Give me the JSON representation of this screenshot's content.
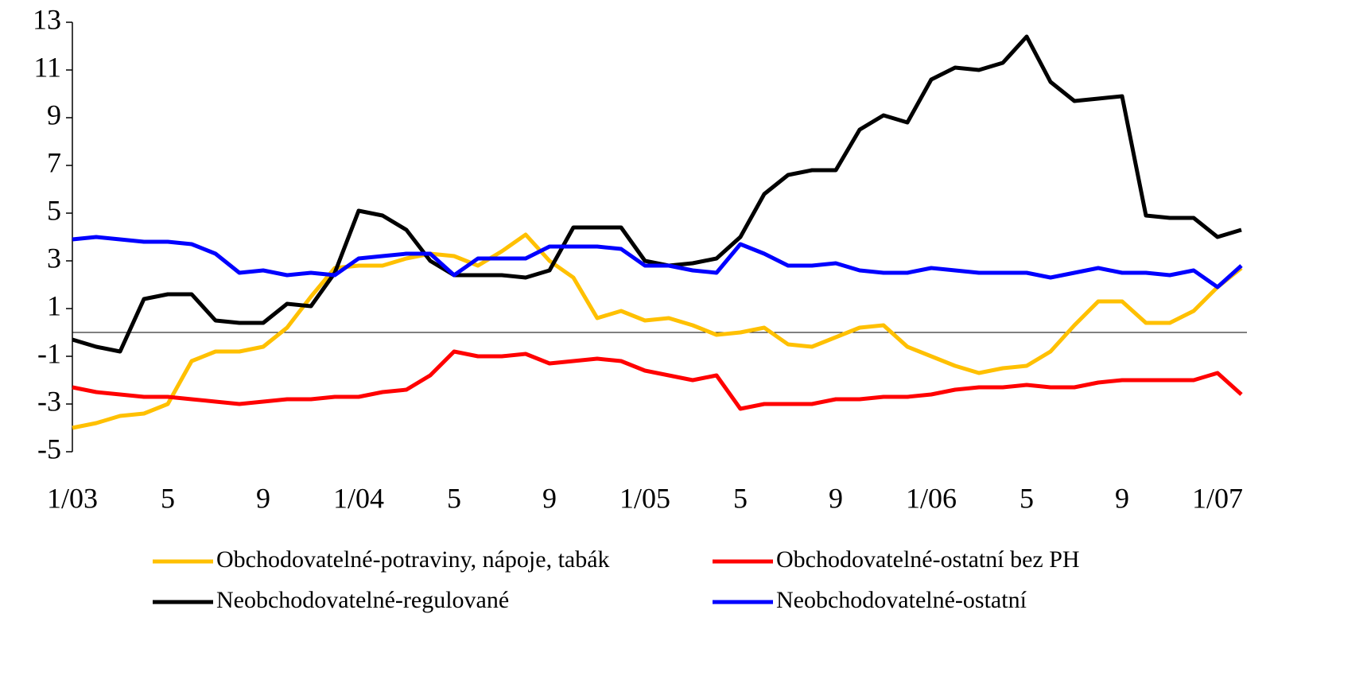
{
  "chart_data": {
    "type": "line",
    "categories": [
      "1/03",
      null,
      null,
      null,
      "5",
      null,
      null,
      null,
      "9",
      null,
      null,
      null,
      "1/04",
      null,
      null,
      null,
      "5",
      null,
      null,
      null,
      "9",
      null,
      null,
      null,
      "1/05",
      null,
      null,
      null,
      "5",
      null,
      null,
      null,
      "9",
      null,
      null,
      null,
      "1/06",
      null,
      null,
      null,
      "5",
      null,
      null,
      null,
      "9",
      null,
      null,
      null,
      "1/07",
      null
    ],
    "series": [
      {
        "name": "Obchodovatelné-potraviny, nápoje, tabák",
        "color": "#ffc000",
        "values": [
          -4.0,
          -3.8,
          -3.5,
          -3.4,
          -3.0,
          -1.2,
          -0.8,
          -0.8,
          -0.6,
          0.2,
          1.5,
          2.7,
          2.8,
          2.8,
          3.1,
          3.3,
          3.2,
          2.8,
          3.4,
          4.1,
          3.0,
          2.3,
          0.6,
          0.9,
          0.5,
          0.6,
          0.3,
          -0.1,
          0,
          0.2,
          -0.5,
          -0.6,
          -0.2,
          0.2,
          0.3,
          -0.6,
          -1.0,
          -1.4,
          -1.7,
          -1.5,
          -1.4,
          -0.8,
          0.3,
          1.3,
          1.3,
          0.4,
          0.4,
          0.9,
          1.9,
          2.7
        ]
      },
      {
        "name": "Obchodovatelné-ostatní bez PH",
        "color": "#ff0000",
        "values": [
          -2.3,
          -2.5,
          -2.6,
          -2.7,
          -2.7,
          -2.8,
          -2.9,
          -3.0,
          -2.9,
          -2.8,
          -2.8,
          -2.7,
          -2.7,
          -2.5,
          -2.4,
          -1.8,
          -0.8,
          -1.0,
          -1.0,
          -0.9,
          -1.3,
          -1.2,
          -1.1,
          -1.2,
          -1.6,
          -1.8,
          -2.0,
          -1.8,
          -3.2,
          -3.0,
          -3.0,
          -3.0,
          -2.8,
          -2.8,
          -2.7,
          -2.7,
          -2.6,
          -2.4,
          -2.3,
          -2.3,
          -2.2,
          -2.3,
          -2.3,
          -2.1,
          -2.0,
          -2.0,
          -2.0,
          -2.0,
          -1.7,
          -2.6
        ]
      },
      {
        "name": "Neobchodovatelné-regulované",
        "color": "#000000",
        "values": [
          -0.3,
          -0.6,
          -0.8,
          1.4,
          1.6,
          1.6,
          0.5,
          0.4,
          0.4,
          1.2,
          1.1,
          2.5,
          5.1,
          4.9,
          4.3,
          3.0,
          2.4,
          2.4,
          2.4,
          2.3,
          2.6,
          4.4,
          4.4,
          4.4,
          3.0,
          2.8,
          2.9,
          3.1,
          4.0,
          5.8,
          6.6,
          6.8,
          6.8,
          8.5,
          9.1,
          8.8,
          10.6,
          11.1,
          11.0,
          11.3,
          12.4,
          10.5,
          9.7,
          9.8,
          9.9,
          4.9,
          4.8,
          4.8,
          4.0,
          4.3
        ]
      },
      {
        "name": "Neobchodovatelné-ostatní",
        "color": "#0000ff",
        "values": [
          3.9,
          4.0,
          3.9,
          3.8,
          3.8,
          3.7,
          3.3,
          2.5,
          2.6,
          2.4,
          2.5,
          2.4,
          3.1,
          3.2,
          3.3,
          3.3,
          2.4,
          3.1,
          3.1,
          3.1,
          3.6,
          3.6,
          3.6,
          3.5,
          2.8,
          2.8,
          2.6,
          2.5,
          3.7,
          3.3,
          2.8,
          2.8,
          2.9,
          2.6,
          2.5,
          2.5,
          2.7,
          2.6,
          2.5,
          2.5,
          2.5,
          2.3,
          2.5,
          2.7,
          2.5,
          2.5,
          2.4,
          2.6,
          1.9,
          2.8
        ]
      }
    ],
    "ylim": [
      -5,
      13
    ],
    "yticks": [
      -5,
      -3,
      -1,
      1,
      3,
      5,
      7,
      9,
      11,
      13
    ]
  }
}
